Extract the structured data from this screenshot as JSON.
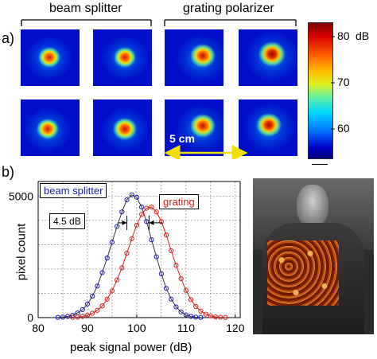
{
  "panel_a": {
    "letter": "a)",
    "group_labels": [
      "beam splitter",
      "grating polarizer"
    ],
    "scale_label": "5 cm",
    "colorbar": {
      "unit": "dB",
      "ticks": [
        "80",
        "70",
        "60"
      ],
      "range": [
        55,
        84
      ]
    }
  },
  "panel_b": {
    "letter": "b)"
  },
  "chart_data": {
    "type": "line",
    "xlabel": "peak signal power (dB)",
    "ylabel": "pixel count",
    "xlim": [
      80,
      121
    ],
    "ylim": [
      0,
      5600
    ],
    "xticks": [
      "80",
      "90",
      "100",
      "110",
      "120"
    ],
    "yticks": [
      "0",
      "5000"
    ],
    "grid": true,
    "series": [
      {
        "name": "beam splitter",
        "color": "#1a1ab4",
        "x": [
          84,
          85,
          86,
          87,
          88,
          89,
          90,
          91,
          92,
          93,
          94,
          95,
          96,
          97,
          98,
          99,
          100,
          101,
          102,
          103,
          104,
          105,
          106,
          107,
          108,
          109,
          110,
          111,
          112,
          113
        ],
        "values": [
          10,
          20,
          50,
          100,
          190,
          330,
          560,
          880,
          1300,
          1850,
          2450,
          3100,
          3750,
          4350,
          4850,
          5050,
          4950,
          4550,
          3950,
          3200,
          2500,
          1800,
          1200,
          760,
          440,
          230,
          110,
          50,
          20,
          10
        ]
      },
      {
        "name": "grating",
        "color": "#d42020",
        "x": [
          87,
          88,
          89,
          90,
          91,
          92,
          93,
          94,
          95,
          96,
          97,
          98,
          99,
          100,
          101,
          102,
          103,
          104,
          105,
          106,
          107,
          108,
          109,
          110,
          111,
          112,
          113,
          114,
          115,
          116,
          117,
          118
        ],
        "values": [
          10,
          20,
          50,
          100,
          180,
          300,
          480,
          760,
          1100,
          1550,
          2050,
          2650,
          3250,
          3800,
          4250,
          4500,
          4550,
          4350,
          3950,
          3400,
          2750,
          2150,
          1600,
          1120,
          740,
          460,
          270,
          140,
          70,
          30,
          15,
          8
        ]
      }
    ],
    "annotations": [
      {
        "text": "4.5 dB"
      }
    ]
  },
  "photo": {
    "description_hidden": true
  }
}
